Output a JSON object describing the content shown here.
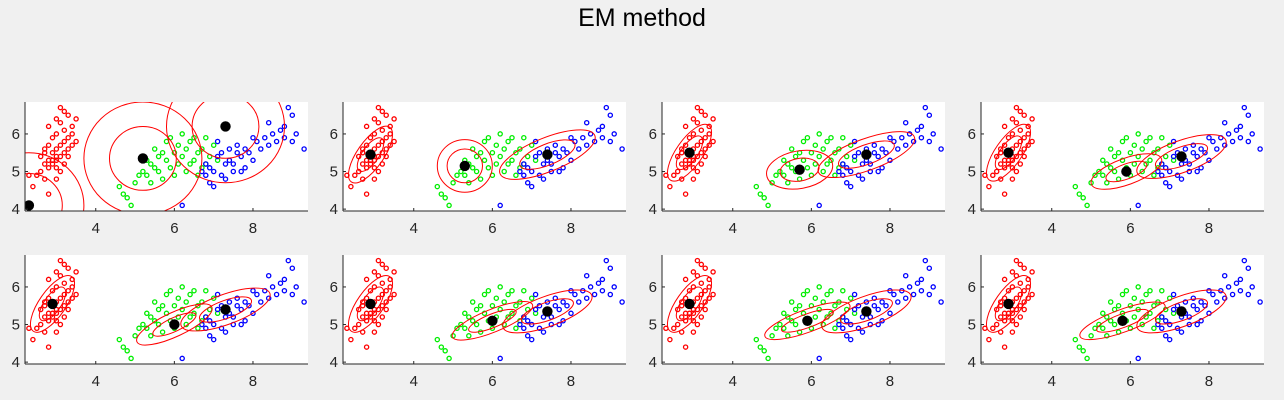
{
  "title": "EM method",
  "chart_data": {
    "type": "scatter",
    "title": "EM method",
    "grid": false,
    "colors": {
      "cluster1": "#ff0000",
      "cluster2": "#00ee00",
      "cluster3": "#0000ff",
      "means": "#000000",
      "ellipses": "#ff0000"
    },
    "xlim": [
      2.2,
      9.4
    ],
    "ylim": [
      3.95,
      6.85
    ],
    "xticks": [
      4,
      6,
      8
    ],
    "yticks": [
      4,
      5,
      6
    ],
    "points": {
      "red": [
        [
          2.3,
          4.9
        ],
        [
          2.4,
          4.6
        ],
        [
          2.5,
          4.9
        ],
        [
          2.6,
          5.0
        ],
        [
          2.6,
          5.4
        ],
        [
          2.7,
          5.2
        ],
        [
          2.7,
          5.6
        ],
        [
          2.7,
          4.8
        ],
        [
          2.8,
          5.3
        ],
        [
          2.8,
          5.1
        ],
        [
          2.8,
          5.7
        ],
        [
          2.8,
          4.4
        ],
        [
          2.9,
          5.5
        ],
        [
          2.9,
          5.2
        ],
        [
          2.9,
          5.9
        ],
        [
          3.0,
          5.4
        ],
        [
          3.0,
          5.1
        ],
        [
          3.0,
          6.0
        ],
        [
          3.0,
          5.6
        ],
        [
          3.0,
          4.8
        ],
        [
          3.1,
          5.7
        ],
        [
          3.1,
          6.3
        ],
        [
          3.1,
          5.4
        ],
        [
          3.2,
          5.8
        ],
        [
          3.2,
          5.5
        ],
        [
          3.2,
          6.1
        ],
        [
          3.2,
          5.2
        ],
        [
          3.3,
          5.9
        ],
        [
          3.3,
          6.5
        ],
        [
          3.3,
          5.6
        ],
        [
          3.4,
          6.0
        ],
        [
          3.4,
          5.7
        ],
        [
          3.4,
          6.2
        ],
        [
          3.5,
          5.8
        ],
        [
          3.5,
          6.4
        ],
        [
          3.1,
          6.7
        ],
        [
          3.2,
          6.6
        ],
        [
          2.9,
          5.3
        ],
        [
          3.0,
          5.3
        ],
        [
          3.1,
          5.0
        ],
        [
          2.8,
          6.2
        ],
        [
          3.0,
          6.4
        ],
        [
          3.3,
          5.4
        ],
        [
          2.7,
          5.5
        ]
      ],
      "green": [
        [
          4.6,
          4.6
        ],
        [
          4.7,
          4.4
        ],
        [
          4.8,
          4.3
        ],
        [
          4.9,
          4.1
        ],
        [
          5.0,
          4.7
        ],
        [
          5.1,
          4.9
        ],
        [
          5.2,
          5.0
        ],
        [
          5.3,
          4.9
        ],
        [
          5.3,
          5.3
        ],
        [
          5.4,
          4.7
        ],
        [
          5.5,
          5.1
        ],
        [
          5.5,
          5.6
        ],
        [
          5.6,
          5.0
        ],
        [
          5.6,
          5.4
        ],
        [
          5.7,
          4.8
        ],
        [
          5.8,
          5.3
        ],
        [
          5.8,
          5.8
        ],
        [
          5.9,
          5.1
        ],
        [
          6.0,
          5.5
        ],
        [
          6.0,
          4.9
        ],
        [
          6.1,
          5.7
        ],
        [
          6.1,
          5.2
        ],
        [
          6.2,
          5.4
        ],
        [
          6.3,
          5.0
        ],
        [
          6.3,
          5.6
        ],
        [
          6.4,
          5.8
        ],
        [
          6.5,
          5.3
        ],
        [
          6.5,
          5.9
        ],
        [
          6.6,
          5.5
        ],
        [
          6.7,
          5.6
        ],
        [
          6.7,
          5.1
        ],
        [
          6.8,
          5.9
        ],
        [
          6.9,
          5.4
        ],
        [
          7.0,
          5.7
        ],
        [
          7.1,
          5.3
        ],
        [
          5.9,
          5.9
        ],
        [
          6.2,
          6.0
        ],
        [
          6.4,
          5.2
        ],
        [
          5.7,
          5.5
        ],
        [
          6.6,
          4.9
        ],
        [
          6.8,
          5.2
        ],
        [
          5.4,
          5.2
        ]
      ],
      "blue": [
        [
          6.2,
          4.1
        ],
        [
          6.7,
          5.0
        ],
        [
          6.8,
          4.9
        ],
        [
          6.8,
          5.2
        ],
        [
          6.9,
          4.7
        ],
        [
          6.9,
          5.1
        ],
        [
          7.0,
          5.0
        ],
        [
          7.1,
          5.4
        ],
        [
          7.2,
          4.9
        ],
        [
          7.2,
          5.5
        ],
        [
          7.3,
          5.2
        ],
        [
          7.4,
          5.3
        ],
        [
          7.4,
          5.6
        ],
        [
          7.5,
          5.0
        ],
        [
          7.6,
          5.5
        ],
        [
          7.6,
          5.7
        ],
        [
          7.7,
          5.4
        ],
        [
          7.8,
          5.1
        ],
        [
          7.8,
          5.6
        ],
        [
          7.9,
          5.5
        ],
        [
          8.0,
          5.3
        ],
        [
          8.1,
          5.8
        ],
        [
          8.2,
          5.6
        ],
        [
          8.3,
          5.9
        ],
        [
          8.4,
          5.7
        ],
        [
          8.5,
          6.0
        ],
        [
          8.6,
          5.8
        ],
        [
          8.7,
          6.1
        ],
        [
          8.8,
          6.2
        ],
        [
          8.9,
          6.7
        ],
        [
          9.0,
          5.8
        ],
        [
          9.0,
          6.5
        ],
        [
          9.1,
          6.0
        ],
        [
          9.3,
          5.6
        ],
        [
          7.0,
          4.6
        ],
        [
          7.3,
          4.8
        ],
        [
          7.7,
          5.0
        ],
        [
          8.0,
          5.9
        ],
        [
          7.1,
          5.8
        ],
        [
          7.5,
          5.2
        ],
        [
          8.4,
          6.3
        ],
        [
          8.8,
          5.9
        ]
      ]
    },
    "panels": [
      {
        "means": [
          [
            2.3,
            4.1
          ],
          [
            5.2,
            5.35
          ],
          [
            7.3,
            6.2
          ]
        ],
        "ellipses": [
          {
            "cx": 2.3,
            "cy": 4.1,
            "rx": 0.85,
            "ry": 0.85,
            "angle": 0
          },
          {
            "cx": 2.3,
            "cy": 4.1,
            "rx": 1.4,
            "ry": 1.4,
            "angle": 0
          },
          {
            "cx": 5.2,
            "cy": 5.35,
            "rx": 0.85,
            "ry": 0.85,
            "angle": 0
          },
          {
            "cx": 5.2,
            "cy": 5.35,
            "rx": 1.5,
            "ry": 1.5,
            "angle": 0
          },
          {
            "cx": 7.3,
            "cy": 6.2,
            "rx": 0.85,
            "ry": 0.85,
            "angle": 0
          },
          {
            "cx": 7.3,
            "cy": 6.2,
            "rx": 1.5,
            "ry": 1.5,
            "angle": 0
          }
        ]
      },
      {
        "means": [
          [
            2.9,
            5.45
          ],
          [
            5.3,
            5.15
          ],
          [
            7.4,
            5.45
          ]
        ],
        "ellipses": [
          {
            "cx": 2.9,
            "cy": 5.45,
            "rx": 0.5,
            "ry": 0.22,
            "angle": 55
          },
          {
            "cx": 2.9,
            "cy": 5.45,
            "rx": 0.85,
            "ry": 0.35,
            "angle": 55
          },
          {
            "cx": 5.3,
            "cy": 5.15,
            "rx": 0.45,
            "ry": 0.45,
            "angle": 0
          },
          {
            "cx": 5.3,
            "cy": 5.15,
            "rx": 0.7,
            "ry": 0.7,
            "angle": 0
          },
          {
            "cx": 7.4,
            "cy": 5.45,
            "rx": 0.75,
            "ry": 0.28,
            "angle": 22
          },
          {
            "cx": 7.4,
            "cy": 5.45,
            "rx": 1.3,
            "ry": 0.45,
            "angle": 22
          }
        ]
      },
      {
        "means": [
          [
            2.9,
            5.5
          ],
          [
            5.7,
            5.05
          ],
          [
            7.4,
            5.45
          ]
        ],
        "ellipses": [
          {
            "cx": 2.9,
            "cy": 5.5,
            "rx": 0.5,
            "ry": 0.22,
            "angle": 55
          },
          {
            "cx": 2.9,
            "cy": 5.5,
            "rx": 0.85,
            "ry": 0.35,
            "angle": 55
          },
          {
            "cx": 5.7,
            "cy": 5.05,
            "rx": 0.5,
            "ry": 0.3,
            "angle": 10
          },
          {
            "cx": 5.7,
            "cy": 5.05,
            "rx": 0.85,
            "ry": 0.5,
            "angle": 10
          },
          {
            "cx": 7.4,
            "cy": 5.45,
            "rx": 0.75,
            "ry": 0.26,
            "angle": 20
          },
          {
            "cx": 7.4,
            "cy": 5.45,
            "rx": 1.3,
            "ry": 0.42,
            "angle": 20
          }
        ]
      },
      {
        "means": [
          [
            2.9,
            5.5
          ],
          [
            5.9,
            5.0
          ],
          [
            7.3,
            5.4
          ]
        ],
        "ellipses": [
          {
            "cx": 2.9,
            "cy": 5.5,
            "rx": 0.5,
            "ry": 0.22,
            "angle": 55
          },
          {
            "cx": 2.9,
            "cy": 5.5,
            "rx": 0.85,
            "ry": 0.35,
            "angle": 55
          },
          {
            "cx": 5.9,
            "cy": 5.0,
            "rx": 0.55,
            "ry": 0.2,
            "angle": 20
          },
          {
            "cx": 5.9,
            "cy": 5.0,
            "rx": 0.95,
            "ry": 0.35,
            "angle": 20
          },
          {
            "cx": 7.3,
            "cy": 5.4,
            "rx": 0.7,
            "ry": 0.25,
            "angle": 20
          },
          {
            "cx": 7.3,
            "cy": 5.4,
            "rx": 1.2,
            "ry": 0.42,
            "angle": 20
          }
        ]
      },
      {
        "means": [
          [
            2.9,
            5.55
          ],
          [
            6.0,
            5.0
          ],
          [
            7.3,
            5.4
          ]
        ],
        "ellipses": [
          {
            "cx": 2.9,
            "cy": 5.55,
            "rx": 0.5,
            "ry": 0.22,
            "angle": 55
          },
          {
            "cx": 2.9,
            "cy": 5.55,
            "rx": 0.85,
            "ry": 0.35,
            "angle": 55
          },
          {
            "cx": 6.0,
            "cy": 5.0,
            "rx": 0.6,
            "ry": 0.18,
            "angle": 25
          },
          {
            "cx": 6.0,
            "cy": 5.0,
            "rx": 1.05,
            "ry": 0.32,
            "angle": 25
          },
          {
            "cx": 7.3,
            "cy": 5.4,
            "rx": 0.7,
            "ry": 0.24,
            "angle": 20
          },
          {
            "cx": 7.3,
            "cy": 5.4,
            "rx": 1.2,
            "ry": 0.4,
            "angle": 20
          }
        ]
      },
      {
        "means": [
          [
            2.9,
            5.55
          ],
          [
            6.0,
            5.1
          ],
          [
            7.4,
            5.35
          ]
        ],
        "ellipses": [
          {
            "cx": 2.9,
            "cy": 5.55,
            "rx": 0.5,
            "ry": 0.22,
            "angle": 55
          },
          {
            "cx": 2.9,
            "cy": 5.55,
            "rx": 0.85,
            "ry": 0.35,
            "angle": 55
          },
          {
            "cx": 6.0,
            "cy": 5.1,
            "rx": 0.65,
            "ry": 0.18,
            "angle": 22
          },
          {
            "cx": 6.0,
            "cy": 5.1,
            "rx": 1.1,
            "ry": 0.3,
            "angle": 22
          },
          {
            "cx": 7.4,
            "cy": 5.35,
            "rx": 0.7,
            "ry": 0.24,
            "angle": 20
          },
          {
            "cx": 7.4,
            "cy": 5.35,
            "rx": 1.2,
            "ry": 0.4,
            "angle": 20
          }
        ]
      },
      {
        "means": [
          [
            2.9,
            5.55
          ],
          [
            5.9,
            5.1
          ],
          [
            7.4,
            5.35
          ]
        ],
        "ellipses": [
          {
            "cx": 2.9,
            "cy": 5.55,
            "rx": 0.5,
            "ry": 0.22,
            "angle": 55
          },
          {
            "cx": 2.9,
            "cy": 5.55,
            "rx": 0.85,
            "ry": 0.35,
            "angle": 55
          },
          {
            "cx": 5.9,
            "cy": 5.1,
            "rx": 0.7,
            "ry": 0.18,
            "angle": 20
          },
          {
            "cx": 5.9,
            "cy": 5.1,
            "rx": 1.15,
            "ry": 0.3,
            "angle": 20
          },
          {
            "cx": 7.4,
            "cy": 5.35,
            "rx": 0.7,
            "ry": 0.24,
            "angle": 20
          },
          {
            "cx": 7.4,
            "cy": 5.35,
            "rx": 1.2,
            "ry": 0.4,
            "angle": 20
          }
        ]
      },
      {
        "means": [
          [
            2.9,
            5.55
          ],
          [
            5.8,
            5.1
          ],
          [
            7.3,
            5.35
          ]
        ],
        "ellipses": [
          {
            "cx": 2.9,
            "cy": 5.55,
            "rx": 0.5,
            "ry": 0.22,
            "angle": 55
          },
          {
            "cx": 2.9,
            "cy": 5.55,
            "rx": 0.85,
            "ry": 0.35,
            "angle": 55
          },
          {
            "cx": 5.8,
            "cy": 5.1,
            "rx": 0.7,
            "ry": 0.18,
            "angle": 20
          },
          {
            "cx": 5.8,
            "cy": 5.1,
            "rx": 1.15,
            "ry": 0.3,
            "angle": 20
          },
          {
            "cx": 7.3,
            "cy": 5.35,
            "rx": 0.7,
            "ry": 0.24,
            "angle": 20
          },
          {
            "cx": 7.3,
            "cy": 5.35,
            "rx": 1.2,
            "ry": 0.4,
            "angle": 20
          }
        ]
      }
    ]
  }
}
